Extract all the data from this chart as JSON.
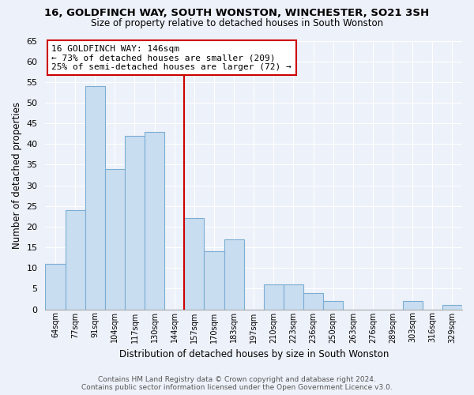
{
  "title": "16, GOLDFINCH WAY, SOUTH WONSTON, WINCHESTER, SO21 3SH",
  "subtitle": "Size of property relative to detached houses in South Wonston",
  "xlabel": "Distribution of detached houses by size in South Wonston",
  "ylabel": "Number of detached properties",
  "categories": [
    "64sqm",
    "77sqm",
    "91sqm",
    "104sqm",
    "117sqm",
    "130sqm",
    "144sqm",
    "157sqm",
    "170sqm",
    "183sqm",
    "197sqm",
    "210sqm",
    "223sqm",
    "236sqm",
    "250sqm",
    "263sqm",
    "276sqm",
    "289sqm",
    "303sqm",
    "316sqm",
    "329sqm"
  ],
  "values": [
    11,
    24,
    54,
    34,
    42,
    43,
    0,
    22,
    14,
    17,
    0,
    6,
    6,
    4,
    2,
    0,
    0,
    0,
    2,
    0,
    1
  ],
  "bar_color": "#c9ddf0",
  "bar_edge_color": "#7aadd4",
  "vline_index": 6.5,
  "annotation_line1": "16 GOLDFINCH WAY: 146sqm",
  "annotation_line2": "← 73% of detached houses are smaller (209)",
  "annotation_line3": "25% of semi-detached houses are larger (72) →",
  "annotation_box_facecolor": "#ffffff",
  "annotation_box_edgecolor": "#cc0000",
  "vline_color": "#cc0000",
  "ylim": [
    0,
    65
  ],
  "yticks": [
    0,
    5,
    10,
    15,
    20,
    25,
    30,
    35,
    40,
    45,
    50,
    55,
    60,
    65
  ],
  "bg_color": "#edf1f9",
  "plot_bg_color": "#edf1f9",
  "grid_color": "#ffffff",
  "footer_line1": "Contains HM Land Registry data © Crown copyright and database right 2024.",
  "footer_line2": "Contains public sector information licensed under the Open Government Licence v3.0."
}
